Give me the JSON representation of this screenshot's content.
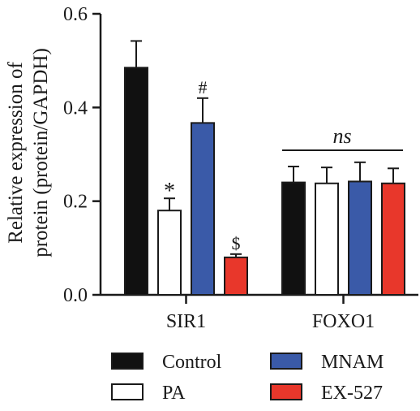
{
  "chart_data": {
    "type": "bar",
    "ylabel_line1": "Relative expression of",
    "ylabel_line2": "protein (protein/GAPDH)",
    "ylim": [
      0,
      0.6
    ],
    "yticks": [
      "0.0",
      "0.2",
      "0.4",
      "0.6"
    ],
    "ytick_values": [
      0,
      0.2,
      0.4,
      0.6
    ],
    "categories": [
      "SIR1",
      "FOXO1"
    ],
    "series": [
      {
        "name": "Control",
        "color": "#111111",
        "values": [
          0.485,
          0.24
        ],
        "errors": [
          0.057,
          0.034
        ],
        "marks": [
          "",
          ""
        ]
      },
      {
        "name": "PA",
        "color": "#ffffff",
        "values": [
          0.18,
          0.238
        ],
        "errors": [
          0.026,
          0.034
        ],
        "marks": [
          "*",
          ""
        ]
      },
      {
        "name": "MNAM",
        "color": "#3a5aa8",
        "values": [
          0.367,
          0.242
        ],
        "errors": [
          0.053,
          0.041
        ],
        "marks": [
          "#",
          ""
        ]
      },
      {
        "name": "EX-527",
        "color": "#e8372b",
        "values": [
          0.08,
          0.238
        ],
        "errors": [
          0.007,
          0.032
        ],
        "marks": [
          "$",
          ""
        ]
      }
    ],
    "annotation": "ns",
    "legend_placement": "bottom",
    "grid": false
  }
}
